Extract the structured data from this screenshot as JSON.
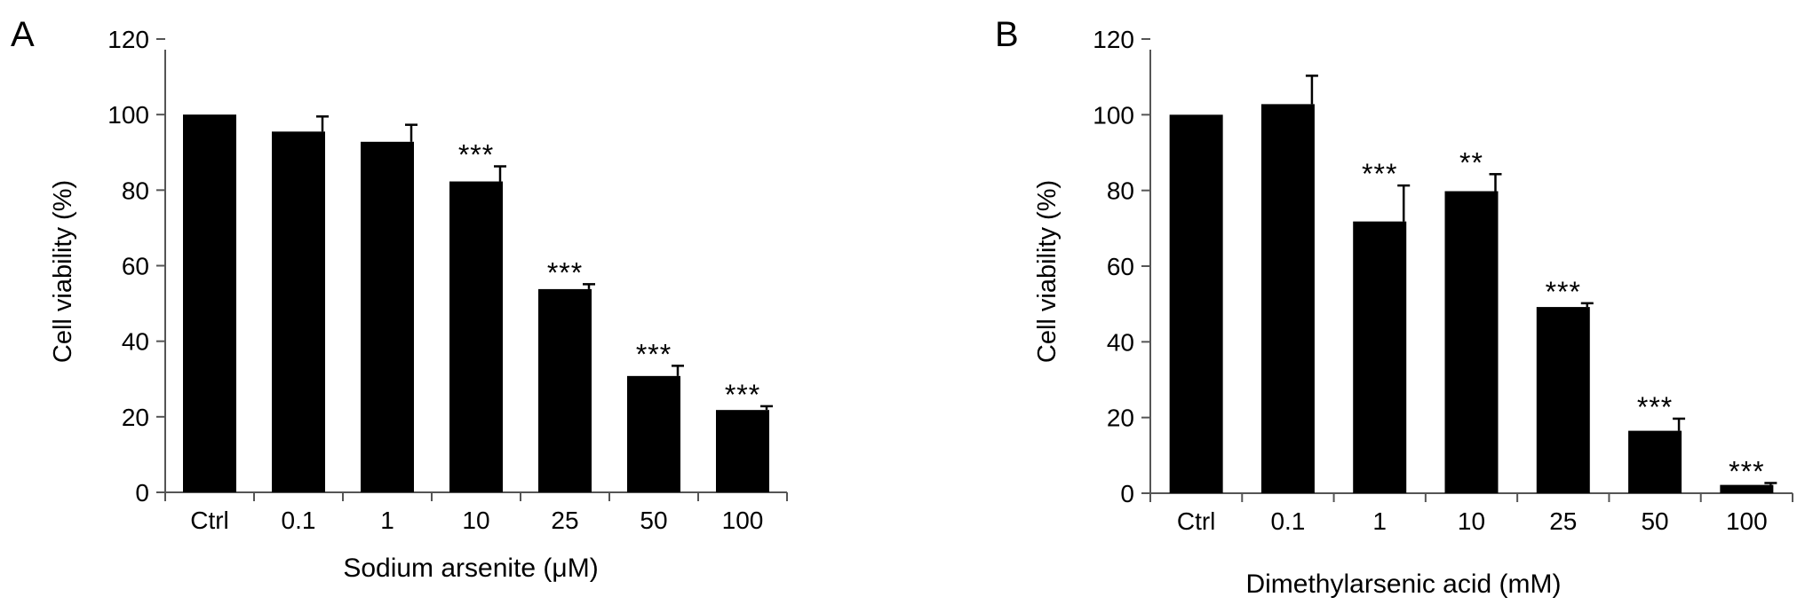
{
  "chart_data": [
    {
      "panel_label": "A",
      "type": "bar",
      "categories": [
        "Ctrl",
        "0.1",
        "1",
        "10",
        "25",
        "50",
        "100"
      ],
      "values": [
        100,
        95.5,
        92.8,
        82.3,
        53.8,
        30.8,
        21.8
      ],
      "errors": [
        0,
        4.0,
        4.5,
        4.0,
        1.3,
        2.7,
        1.0
      ],
      "significance": [
        "",
        "",
        "",
        "***",
        "***",
        "***",
        "***"
      ],
      "xlabel": "Sodium arsenite (μM)",
      "ylabel": "Cell viability (%)",
      "ylim": [
        0,
        120
      ],
      "yticks": [
        0,
        20,
        40,
        60,
        80,
        100,
        120
      ],
      "grid": false,
      "bar_color": "#000000"
    },
    {
      "panel_label": "B",
      "type": "bar",
      "categories": [
        "Ctrl",
        "0.1",
        "1",
        "10",
        "25",
        "50",
        "100"
      ],
      "values": [
        100,
        102.8,
        71.8,
        79.8,
        49.2,
        16.5,
        2.2
      ],
      "errors": [
        0,
        7.5,
        9.5,
        4.5,
        1.0,
        3.2,
        0.5
      ],
      "significance": [
        "",
        "",
        "***",
        "**",
        "***",
        "***",
        "***"
      ],
      "xlabel": "Dimethylarsenic acid (mM)",
      "ylabel": "Cell viability (%)",
      "ylim": [
        0,
        120
      ],
      "yticks": [
        0,
        20,
        40,
        60,
        80,
        100,
        120
      ],
      "grid": false,
      "bar_color": "#000000"
    }
  ]
}
